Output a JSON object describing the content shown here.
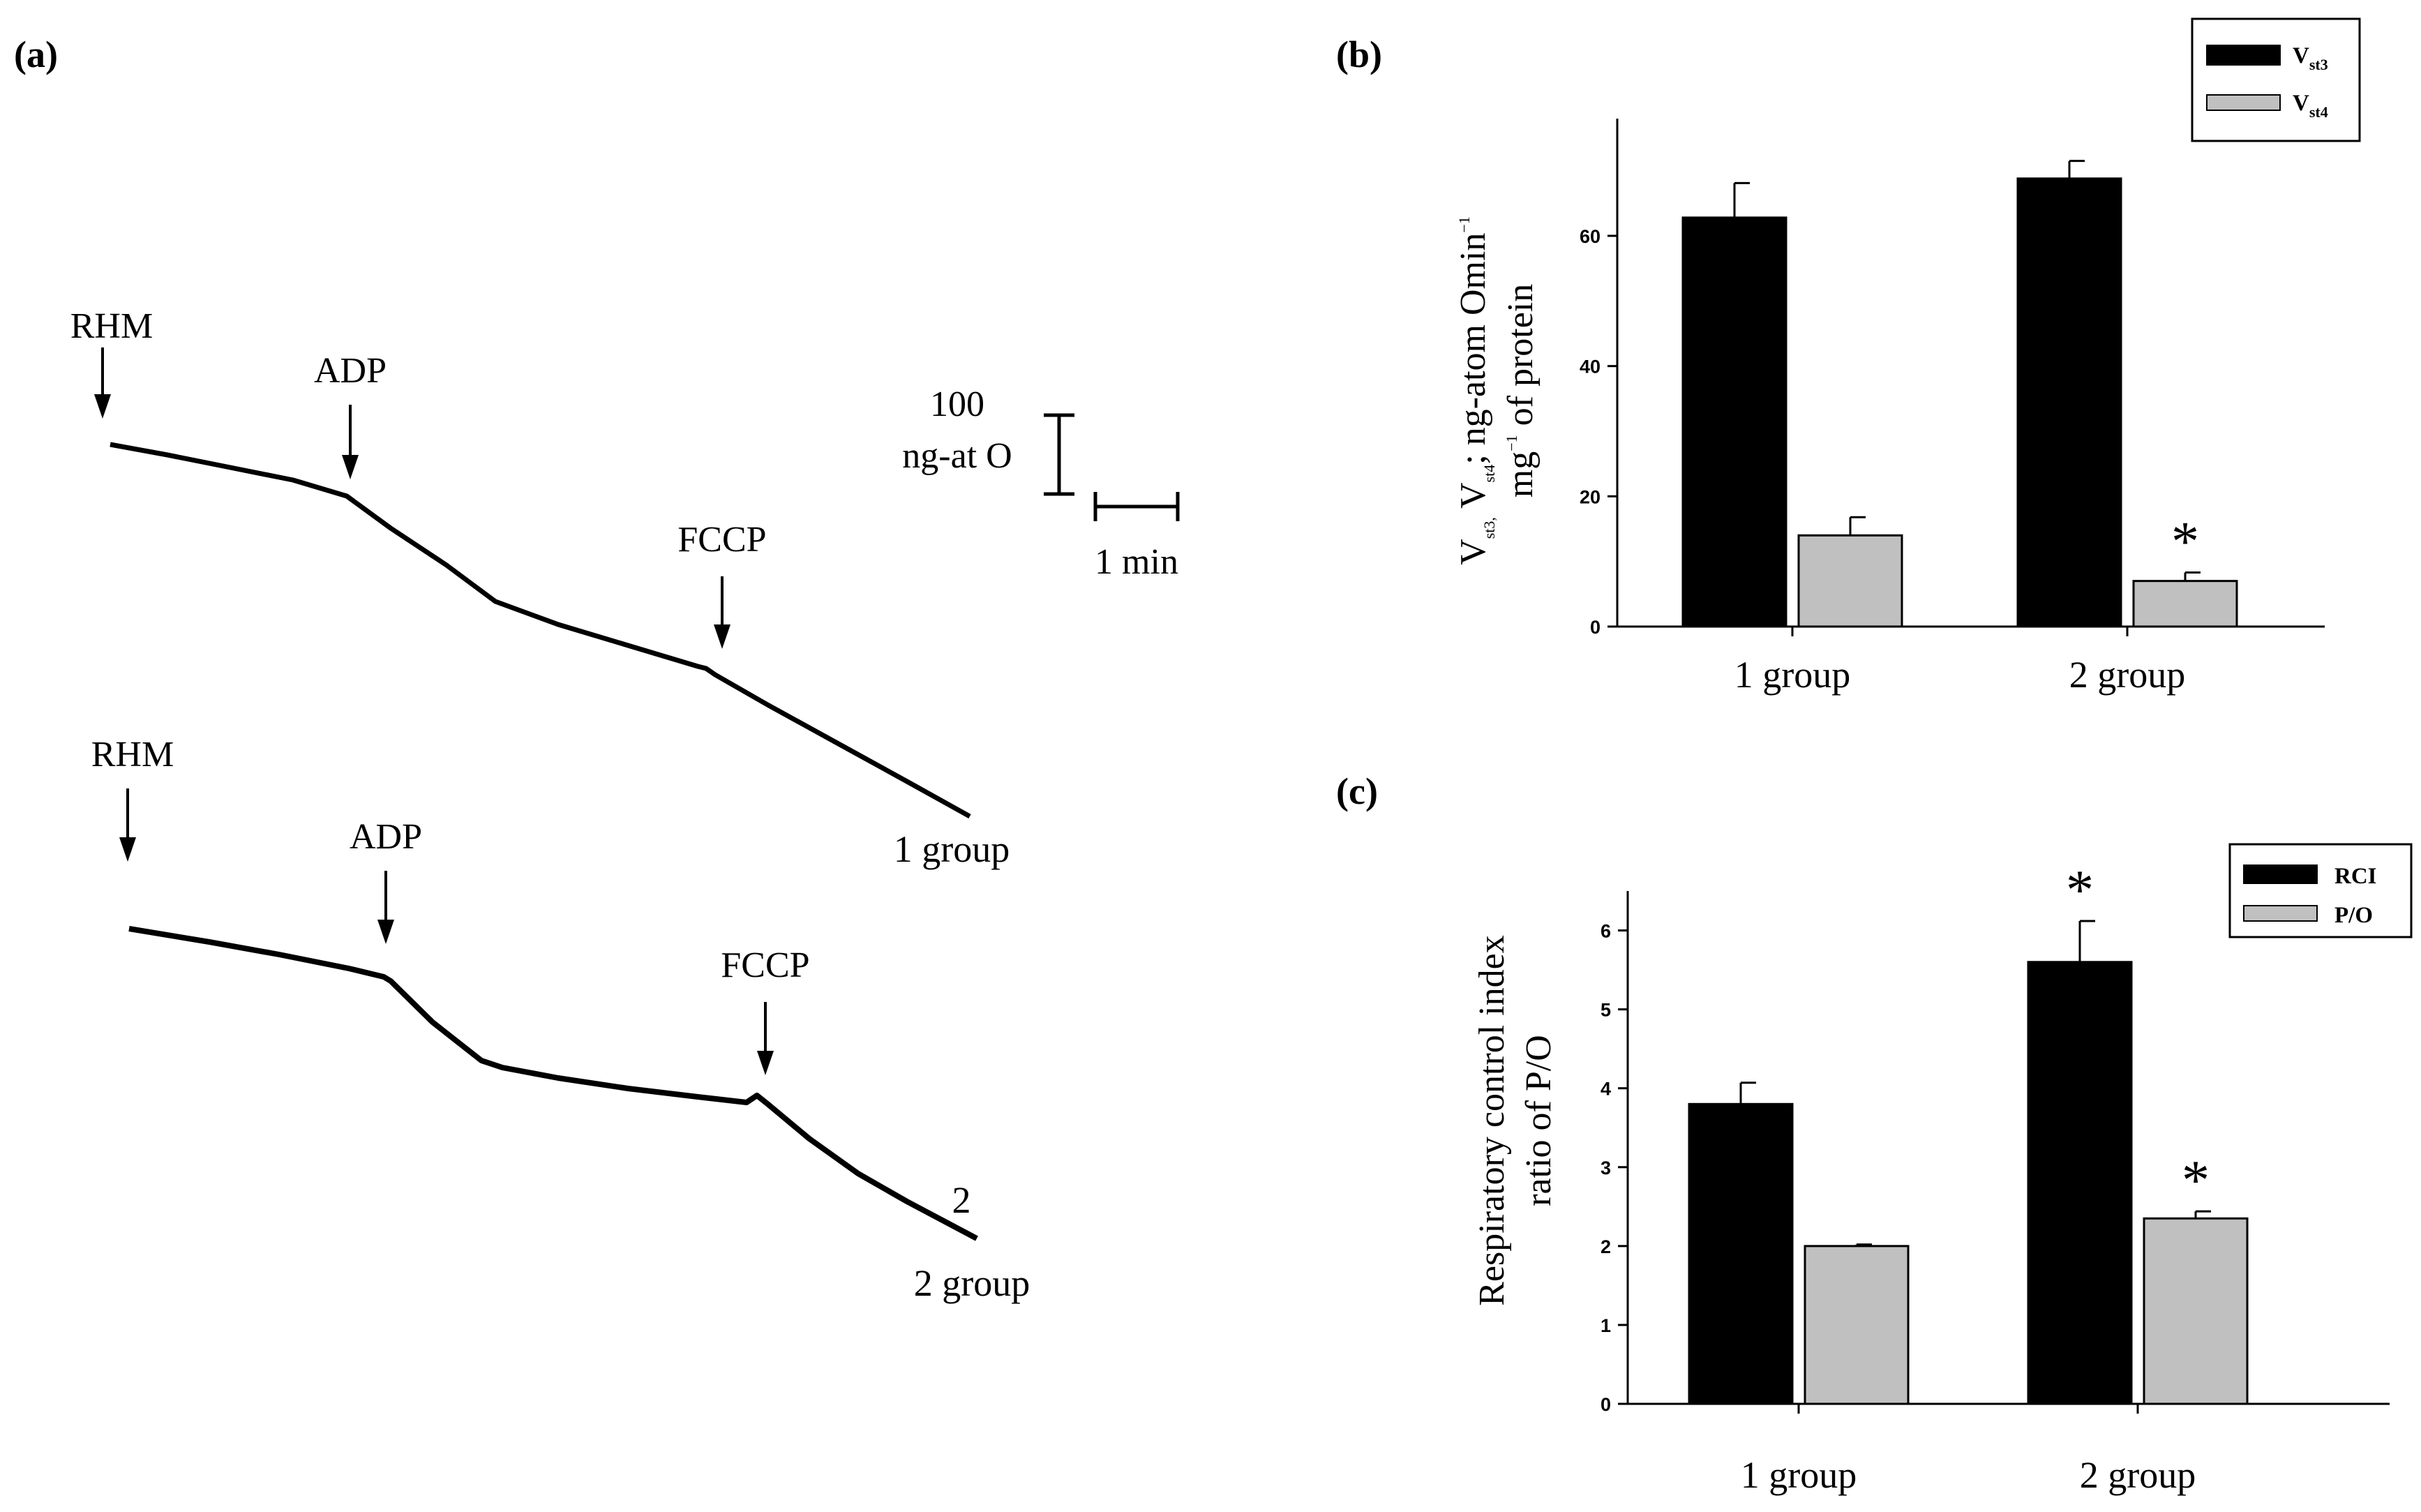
{
  "panel_a": {
    "label": "(a)",
    "scale_bar_o2_value": "100",
    "scale_bar_o2_unit": "ng-at O",
    "scale_bar_time": "1 min",
    "traces": [
      {
        "group_label": "1 group",
        "trace_number": "",
        "arrows": [
          "RHM",
          "ADP",
          "FCCP"
        ]
      },
      {
        "group_label": "2 group",
        "trace_number": "2",
        "arrows": [
          "RHM",
          "ADP",
          "FCCP"
        ]
      }
    ]
  },
  "chart_data": [
    {
      "panel_label": "(b)",
      "type": "bar",
      "categories": [
        "1 group",
        "2 group"
      ],
      "series": [
        {
          "name": "V",
          "subscript": "st3",
          "color": "#000000",
          "values": [
            62.8,
            68.8
          ],
          "errors": [
            5.3,
            2.7
          ]
        },
        {
          "name": "V",
          "subscript": "st4",
          "color": "#c0c0c0",
          "values": [
            14.0,
            7.0
          ],
          "errors": [
            2.8,
            1.3
          ]
        }
      ],
      "significance": [
        {
          "series": 1,
          "category": 1,
          "mark": "*"
        }
      ],
      "ylabel_line1": "V",
      "ylabel_line1_sub1": "st3,",
      "ylabel_line1_mid": " V",
      "ylabel_line1_sub2": "st4",
      "ylabel_line1_end": "; ng-atom Omin",
      "ylabel_line1_sup": "−1",
      "ylabel_line2_start": "mg",
      "ylabel_line2_sup": "−1",
      "ylabel_line2_end": " of protein",
      "ylim": [
        0,
        78
      ],
      "yticks": [
        "0",
        "20",
        "40",
        "60"
      ],
      "legend_position": "top-right"
    },
    {
      "panel_label": "(c)",
      "type": "bar",
      "categories": [
        "1 group",
        "2 group"
      ],
      "series": [
        {
          "name": "RCI",
          "subscript": "",
          "color": "#000000",
          "values": [
            3.8,
            5.6
          ],
          "errors": [
            0.27,
            0.52
          ]
        },
        {
          "name": "P/O",
          "subscript": "",
          "color": "#c0c0c0",
          "values": [
            2.0,
            2.35
          ],
          "errors": [
            0.02,
            0.09
          ]
        }
      ],
      "significance": [
        {
          "series": 0,
          "category": 1,
          "mark": "*"
        },
        {
          "series": 1,
          "category": 1,
          "mark": "*"
        }
      ],
      "ylabel_line1": "Respiratory control index",
      "ylabel_line2": "ratio of P/O",
      "ylim": [
        0,
        6.5
      ],
      "yticks": [
        "0",
        "1",
        "2",
        "3",
        "4",
        "5",
        "6"
      ],
      "legend_position": "top-right"
    }
  ]
}
